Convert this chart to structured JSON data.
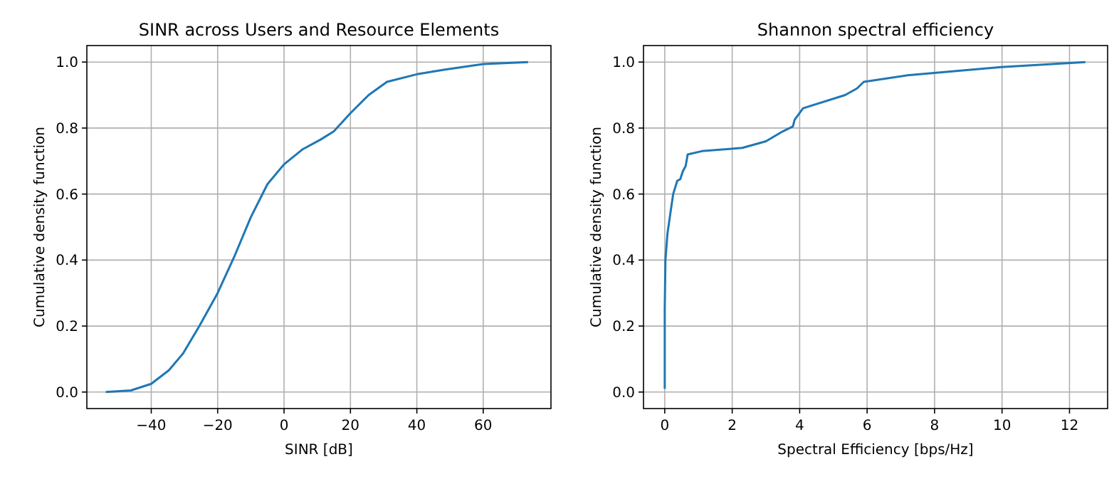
{
  "chart_data": [
    {
      "type": "line",
      "title": "SINR across Users and Resource Elements",
      "xlabel": "SINR [dB]",
      "ylabel": "Cumulative density function",
      "xlim": [
        -59.4,
        80.4
      ],
      "ylim": [
        -0.05,
        1.05
      ],
      "xticks": [
        -40,
        -20,
        0,
        20,
        40,
        60
      ],
      "yticks": [
        {
          "value": 0,
          "label": "0.0"
        },
        {
          "value": 0.2,
          "label": "0.2"
        },
        {
          "value": 0.4,
          "label": "0.4"
        },
        {
          "value": 0.6,
          "label": "0.6"
        },
        {
          "value": 0.8,
          "label": "0.8"
        },
        {
          "value": 1,
          "label": "1.0"
        }
      ],
      "grid": true,
      "series": [
        {
          "color": "#1f77b4",
          "x": [
            -53.7,
            -46.1,
            -40,
            -34.7,
            -30.4,
            -25.5,
            -20,
            -15,
            -10,
            -5,
            0,
            5.5,
            11,
            15,
            20,
            25.5,
            31,
            40,
            48.5,
            60,
            73.5
          ],
          "values": [
            0,
            0.005,
            0.025,
            0.066,
            0.117,
            0.2,
            0.3,
            0.41,
            0.53,
            0.63,
            0.69,
            0.735,
            0.765,
            0.79,
            0.845,
            0.9,
            0.94,
            0.963,
            0.977,
            0.994,
            1
          ]
        }
      ]
    },
    {
      "type": "line",
      "title": "Shannon spectral efficiency",
      "xlabel": "Spectral Efficiency [bps/Hz]",
      "ylabel": "Cumulative density function",
      "xlim": [
        -0.63,
        13.13
      ],
      "ylim": [
        -0.05,
        1.05
      ],
      "xticks": [
        0,
        2,
        4,
        6,
        8,
        10,
        12
      ],
      "yticks": [
        {
          "value": 0,
          "label": "0.0"
        },
        {
          "value": 0.2,
          "label": "0.2"
        },
        {
          "value": 0.4,
          "label": "0.4"
        },
        {
          "value": 0.6,
          "label": "0.6"
        },
        {
          "value": 0.8,
          "label": "0.8"
        },
        {
          "value": 1,
          "label": "1.0"
        }
      ],
      "grid": true,
      "series": [
        {
          "color": "#1f77b4",
          "x": [
            0,
            0,
            0.02,
            0.08,
            0.15,
            0.25,
            0.37,
            0.46,
            0.54,
            0.62,
            0.68,
            1.1,
            2.3,
            3,
            3.5,
            3.8,
            3.85,
            4.1,
            5.35,
            5.7,
            5.9,
            7.2,
            9.97,
            12.47
          ],
          "values": [
            0.01,
            0.25,
            0.4,
            0.48,
            0.53,
            0.6,
            0.64,
            0.645,
            0.67,
            0.685,
            0.72,
            0.73,
            0.74,
            0.76,
            0.79,
            0.805,
            0.825,
            0.86,
            0.9,
            0.92,
            0.94,
            0.96,
            0.985,
            1
          ]
        }
      ]
    }
  ]
}
